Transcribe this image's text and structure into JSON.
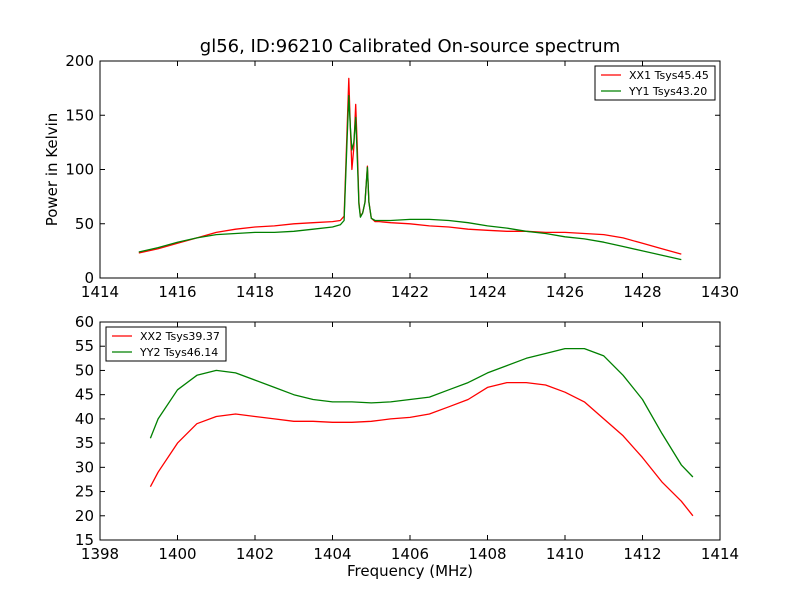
{
  "figure_title": "gl56, ID:96210 Calibrated On-source spectrum",
  "chart_data": [
    {
      "type": "line",
      "title": "gl56, ID:96210 Calibrated On-source spectrum",
      "xlabel": "",
      "ylabel": "Power in Kelvin",
      "xlim": [
        1414,
        1430
      ],
      "ylim": [
        0,
        200
      ],
      "xticks": [
        1414,
        1416,
        1418,
        1420,
        1422,
        1424,
        1426,
        1428,
        1430
      ],
      "yticks": [
        0,
        50,
        100,
        150,
        200
      ],
      "grid": false,
      "legend": "top-right",
      "series": [
        {
          "name": "XX1 Tsys45.45",
          "color": "#ff0000",
          "x": [
            1415.0,
            1415.5,
            1416.0,
            1416.5,
            1417.0,
            1417.5,
            1418.0,
            1418.5,
            1419.0,
            1419.5,
            1420.0,
            1420.2,
            1420.3,
            1420.38,
            1420.42,
            1420.46,
            1420.5,
            1420.55,
            1420.6,
            1420.64,
            1420.68,
            1420.72,
            1420.78,
            1420.84,
            1420.9,
            1420.94,
            1421.0,
            1421.1,
            1421.2,
            1421.5,
            1422.0,
            1422.5,
            1423.0,
            1423.5,
            1424.0,
            1424.5,
            1425.0,
            1425.5,
            1426.0,
            1426.5,
            1427.0,
            1427.5,
            1428.0,
            1428.5,
            1429.0
          ],
          "y": [
            23,
            27,
            32,
            37,
            42,
            45,
            47,
            48,
            50,
            51,
            52,
            53,
            57,
            140,
            184,
            140,
            100,
            120,
            160,
            120,
            70,
            57,
            60,
            70,
            103,
            70,
            55,
            52,
            52,
            51,
            50,
            48,
            47,
            45,
            44,
            43,
            43,
            42,
            42,
            41,
            40,
            37,
            32,
            27,
            22
          ]
        },
        {
          "name": "YY1 Tsys43.20",
          "color": "#008000",
          "x": [
            1415.0,
            1415.5,
            1416.0,
            1416.5,
            1417.0,
            1417.5,
            1418.0,
            1418.5,
            1419.0,
            1419.5,
            1420.0,
            1420.2,
            1420.3,
            1420.38,
            1420.42,
            1420.46,
            1420.5,
            1420.55,
            1420.6,
            1420.64,
            1420.68,
            1420.72,
            1420.78,
            1420.84,
            1420.9,
            1420.94,
            1421.0,
            1421.1,
            1421.2,
            1421.5,
            1422.0,
            1422.5,
            1423.0,
            1423.5,
            1424.0,
            1424.5,
            1425.0,
            1425.5,
            1426.0,
            1426.5,
            1427.0,
            1427.5,
            1428.0,
            1428.5,
            1429.0
          ],
          "y": [
            24,
            28,
            33,
            37,
            40,
            41,
            42,
            42,
            43,
            45,
            47,
            49,
            53,
            130,
            168,
            140,
            118,
            125,
            148,
            110,
            68,
            56,
            60,
            70,
            102,
            70,
            55,
            53,
            53,
            53,
            54,
            54,
            53,
            51,
            48,
            46,
            43,
            41,
            38,
            36,
            33,
            29,
            25,
            21,
            17
          ]
        }
      ]
    },
    {
      "type": "line",
      "title": "",
      "xlabel": "Frequency (MHz)",
      "ylabel": "",
      "xlim": [
        1398,
        1414
      ],
      "ylim": [
        15,
        60
      ],
      "xticks": [
        1398,
        1400,
        1402,
        1404,
        1406,
        1408,
        1410,
        1412,
        1414
      ],
      "yticks": [
        15,
        20,
        25,
        30,
        35,
        40,
        45,
        50,
        55,
        60
      ],
      "grid": false,
      "legend": "top-left",
      "series": [
        {
          "name": "XX2 Tsys39.37",
          "color": "#ff0000",
          "x": [
            1399.3,
            1399.5,
            1400.0,
            1400.5,
            1401.0,
            1401.5,
            1402.0,
            1402.5,
            1403.0,
            1403.5,
            1404.0,
            1404.5,
            1405.0,
            1405.5,
            1406.0,
            1406.5,
            1407.0,
            1407.5,
            1408.0,
            1408.5,
            1409.0,
            1409.5,
            1410.0,
            1410.5,
            1411.0,
            1411.5,
            1412.0,
            1412.5,
            1413.0,
            1413.3
          ],
          "y": [
            26,
            29,
            35,
            39,
            40.5,
            41,
            40.5,
            40,
            39.5,
            39.5,
            39.3,
            39.3,
            39.5,
            40,
            40.3,
            41,
            42.5,
            44,
            46.5,
            47.5,
            47.5,
            47,
            45.5,
            43.5,
            40,
            36.5,
            32,
            27,
            23,
            20
          ]
        },
        {
          "name": "YY2 Tsys46.14",
          "color": "#008000",
          "x": [
            1399.3,
            1399.5,
            1400.0,
            1400.5,
            1401.0,
            1401.5,
            1402.0,
            1402.5,
            1403.0,
            1403.5,
            1404.0,
            1404.5,
            1405.0,
            1405.5,
            1406.0,
            1406.5,
            1407.0,
            1407.5,
            1408.0,
            1408.5,
            1409.0,
            1409.5,
            1410.0,
            1410.5,
            1411.0,
            1411.5,
            1412.0,
            1412.5,
            1413.0,
            1413.3
          ],
          "y": [
            36,
            40,
            46,
            49,
            50,
            49.5,
            48,
            46.5,
            45,
            44,
            43.5,
            43.5,
            43.3,
            43.5,
            44,
            44.5,
            46,
            47.5,
            49.5,
            51,
            52.5,
            53.5,
            54.5,
            54.5,
            53,
            49,
            44,
            37,
            30.5,
            28
          ]
        }
      ]
    }
  ]
}
